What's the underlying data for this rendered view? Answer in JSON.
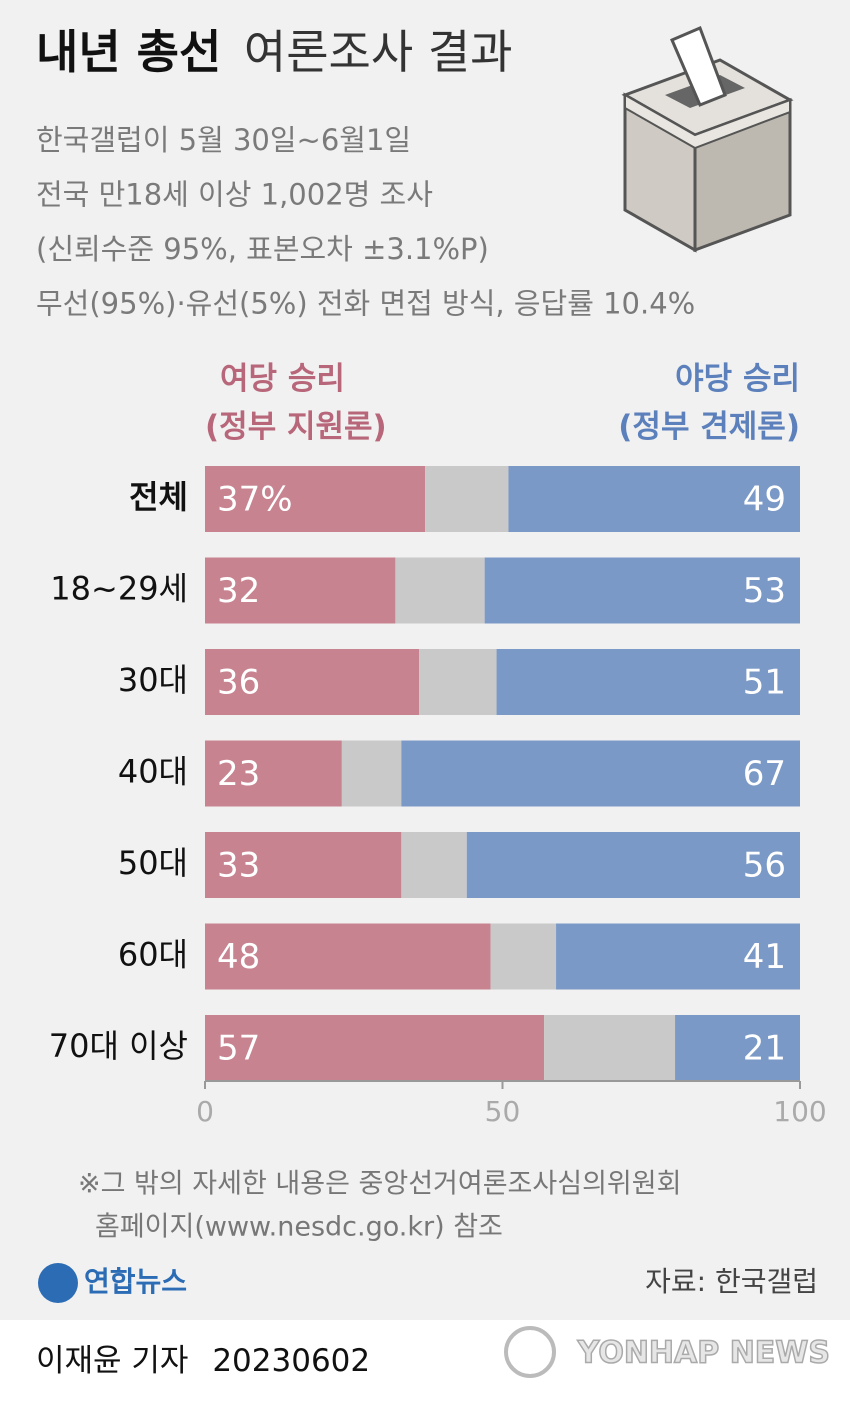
{
  "chart_data": {
    "type": "bar",
    "orientation": "horizontal",
    "stacked": true,
    "title_parts": [
      "내년 총선",
      "여론조사 결과"
    ],
    "subtitle": [
      "한국갤럽이 5월 30일~6월1일",
      "전국 만18세 이상 1,002명 조사",
      "(신뢰수준 95%, 표본오차 ±3.1%P)",
      "무선(95%)·유선(5%) 전화 면접 방식, 응답률 10.4%"
    ],
    "categories": [
      "전체",
      "18~29세",
      "30대",
      "40대",
      "50대",
      "60대",
      "70대 이상"
    ],
    "series": [
      {
        "name": "여당 승리 (정부 지원론)",
        "color": "#c7838f",
        "values": [
          37,
          32,
          36,
          23,
          33,
          48,
          57
        ],
        "value_labels": [
          "37%",
          "32",
          "36",
          "23",
          "33",
          "48",
          "57"
        ]
      },
      {
        "color": "#c9c9c9",
        "values": [
          14,
          15,
          13,
          10,
          11,
          11,
          22
        ]
      },
      {
        "name": "야당 승리 (정부 견제론)",
        "color": "#7b99c6",
        "values": [
          49,
          53,
          51,
          67,
          56,
          41,
          21
        ]
      }
    ],
    "xlim": [
      0,
      100
    ],
    "xticks": [
      0,
      50,
      100
    ],
    "footnote": [
      "※그 밖의 자세한 내용은 중앙선거여론조사심의위원회",
      "홈페이지(www.nesdc.go.kr) 참조"
    ],
    "source": "자료: 한국갤럽"
  },
  "credits": {
    "logo": "연합뉴스",
    "byline": "이재윤 기자",
    "date": "20230602",
    "watermark": "YONHAP NEWS"
  }
}
